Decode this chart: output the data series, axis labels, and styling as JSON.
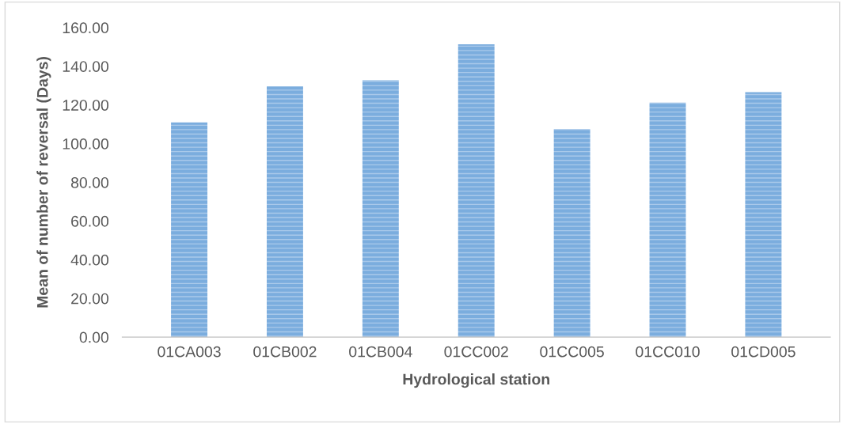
{
  "chart_data": {
    "type": "bar",
    "xlabel": "Hydrological station",
    "ylabel": "Mean of number of reversal (Days)",
    "categories": [
      "01CA003",
      "01CB002",
      "01CB004",
      "01CC002",
      "01CC005",
      "01CC010",
      "01CD005"
    ],
    "values": [
      111,
      129.6,
      132.7,
      151.3,
      107.5,
      121.2,
      126.6
    ],
    "color": "#7badde",
    "ylim": [
      0,
      160
    ],
    "yticks": [
      {
        "value": 0,
        "label": "0.00"
      },
      {
        "value": 20,
        "label": "20.00"
      },
      {
        "value": 40,
        "label": "40.00"
      },
      {
        "value": 60,
        "label": "60.00"
      },
      {
        "value": 80,
        "label": "80.00"
      },
      {
        "value": 100,
        "label": "100.00"
      },
      {
        "value": 120,
        "label": "120.00"
      },
      {
        "value": 140,
        "label": "140.00"
      },
      {
        "value": 160,
        "label": "160.00"
      }
    ],
    "grid": false,
    "legend": false
  }
}
